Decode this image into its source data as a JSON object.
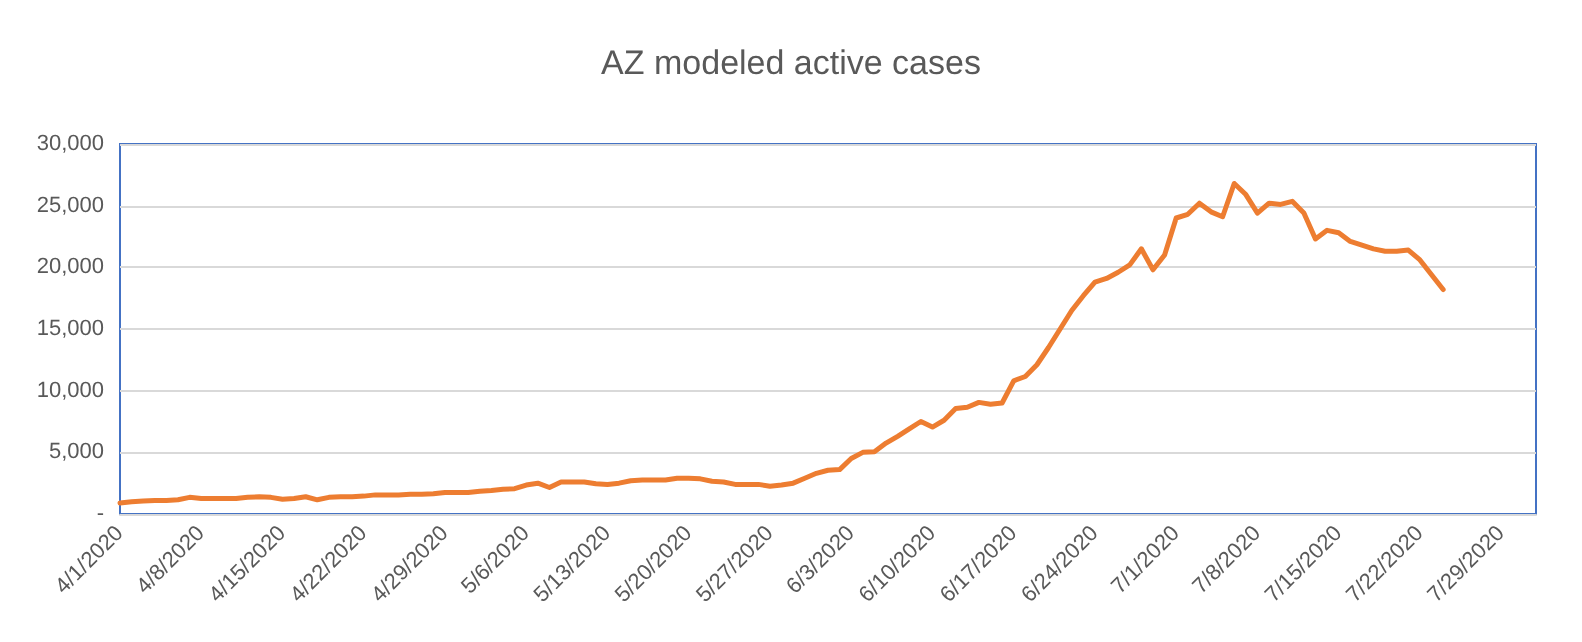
{
  "chart_data": {
    "type": "line",
    "title": "AZ modeled active cases",
    "x": [
      "2020-04-01",
      "2020-04-02",
      "2020-04-03",
      "2020-04-04",
      "2020-04-05",
      "2020-04-06",
      "2020-04-07",
      "2020-04-08",
      "2020-04-09",
      "2020-04-10",
      "2020-04-11",
      "2020-04-12",
      "2020-04-13",
      "2020-04-14",
      "2020-04-15",
      "2020-04-16",
      "2020-04-17",
      "2020-04-18",
      "2020-04-19",
      "2020-04-20",
      "2020-04-21",
      "2020-04-22",
      "2020-04-23",
      "2020-04-24",
      "2020-04-25",
      "2020-04-26",
      "2020-04-27",
      "2020-04-28",
      "2020-04-29",
      "2020-04-30",
      "2020-05-01",
      "2020-05-02",
      "2020-05-03",
      "2020-05-04",
      "2020-05-05",
      "2020-05-06",
      "2020-05-07",
      "2020-05-08",
      "2020-05-09",
      "2020-05-10",
      "2020-05-11",
      "2020-05-12",
      "2020-05-13",
      "2020-05-14",
      "2020-05-15",
      "2020-05-16",
      "2020-05-17",
      "2020-05-18",
      "2020-05-19",
      "2020-05-20",
      "2020-05-21",
      "2020-05-22",
      "2020-05-23",
      "2020-05-24",
      "2020-05-25",
      "2020-05-26",
      "2020-05-27",
      "2020-05-28",
      "2020-05-29",
      "2020-05-30",
      "2020-05-31",
      "2020-06-01",
      "2020-06-02",
      "2020-06-03",
      "2020-06-04",
      "2020-06-05",
      "2020-06-06",
      "2020-06-07",
      "2020-06-08",
      "2020-06-09",
      "2020-06-10",
      "2020-06-11",
      "2020-06-12",
      "2020-06-13",
      "2020-06-14",
      "2020-06-15",
      "2020-06-16",
      "2020-06-17",
      "2020-06-18",
      "2020-06-19",
      "2020-06-20",
      "2020-06-21",
      "2020-06-22",
      "2020-06-23",
      "2020-06-24",
      "2020-06-25",
      "2020-06-26",
      "2020-06-27",
      "2020-06-28",
      "2020-06-29",
      "2020-06-30",
      "2020-07-01",
      "2020-07-02",
      "2020-07-03",
      "2020-07-04",
      "2020-07-05",
      "2020-07-06",
      "2020-07-07",
      "2020-07-08",
      "2020-07-09",
      "2020-07-10",
      "2020-07-11",
      "2020-07-12",
      "2020-07-13",
      "2020-07-14",
      "2020-07-15",
      "2020-07-16",
      "2020-07-17",
      "2020-07-18",
      "2020-07-19",
      "2020-07-20",
      "2020-07-21",
      "2020-07-22",
      "2020-07-23",
      "2020-07-24"
    ],
    "series": [
      {
        "color": "#ed7d31",
        "values": [
          900,
          1000,
          1050,
          1100,
          1100,
          1150,
          1350,
          1250,
          1250,
          1250,
          1250,
          1350,
          1400,
          1350,
          1200,
          1250,
          1400,
          1150,
          1350,
          1400,
          1400,
          1450,
          1550,
          1550,
          1550,
          1600,
          1600,
          1650,
          1750,
          1750,
          1750,
          1850,
          1900,
          2000,
          2050,
          2350,
          2500,
          2150,
          2600,
          2600,
          2600,
          2450,
          2400,
          2500,
          2700,
          2750,
          2750,
          2750,
          2900,
          2900,
          2850,
          2650,
          2600,
          2400,
          2400,
          2400,
          2250,
          2350,
          2500,
          2900,
          3300,
          3550,
          3600,
          4500,
          5000,
          5050,
          5750,
          6300,
          6900,
          7500,
          7050,
          7600,
          8550,
          8650,
          9050,
          8900,
          9000,
          10800,
          11150,
          12100,
          13500,
          15000,
          16500,
          17700,
          18800,
          19100,
          19600,
          20200,
          21500,
          19800,
          21000,
          24000,
          24300,
          25200,
          24500,
          24100,
          26800,
          25900,
          24400,
          25200,
          25100,
          25350,
          24400,
          22300,
          23000,
          22800,
          22100,
          21800,
          21500,
          21300,
          21300,
          21400,
          20600,
          19400,
          18200
        ]
      }
    ],
    "xlim": [
      "2020-04-01",
      "2020-08-01"
    ],
    "xticks": [
      {
        "value": "2020-04-01",
        "label": "4/1/2020"
      },
      {
        "value": "2020-04-08",
        "label": "4/8/2020"
      },
      {
        "value": "2020-04-15",
        "label": "4/15/2020"
      },
      {
        "value": "2020-04-22",
        "label": "4/22/2020"
      },
      {
        "value": "2020-04-29",
        "label": "4/29/2020"
      },
      {
        "value": "2020-05-06",
        "label": "5/6/2020"
      },
      {
        "value": "2020-05-13",
        "label": "5/13/2020"
      },
      {
        "value": "2020-05-20",
        "label": "5/20/2020"
      },
      {
        "value": "2020-05-27",
        "label": "5/27/2020"
      },
      {
        "value": "2020-06-03",
        "label": "6/3/2020"
      },
      {
        "value": "2020-06-10",
        "label": "6/10/2020"
      },
      {
        "value": "2020-06-17",
        "label": "6/17/2020"
      },
      {
        "value": "2020-06-24",
        "label": "6/24/2020"
      },
      {
        "value": "2020-07-01",
        "label": "7/1/2020"
      },
      {
        "value": "2020-07-08",
        "label": "7/8/2020"
      },
      {
        "value": "2020-07-15",
        "label": "7/15/2020"
      },
      {
        "value": "2020-07-22",
        "label": "7/22/2020"
      },
      {
        "value": "2020-07-29",
        "label": "7/29/2020"
      }
    ],
    "ylim": [
      0,
      30000
    ],
    "yticks": [
      {
        "value": 0,
        "label": "-"
      },
      {
        "value": 5000,
        "label": "5,000"
      },
      {
        "value": 10000,
        "label": "10,000"
      },
      {
        "value": 15000,
        "label": "15,000"
      },
      {
        "value": 20000,
        "label": "20,000"
      },
      {
        "value": 25000,
        "label": "25,000"
      },
      {
        "value": 30000,
        "label": "30,000"
      }
    ],
    "grid": "y",
    "marker": "none",
    "line_style": "solid"
  }
}
